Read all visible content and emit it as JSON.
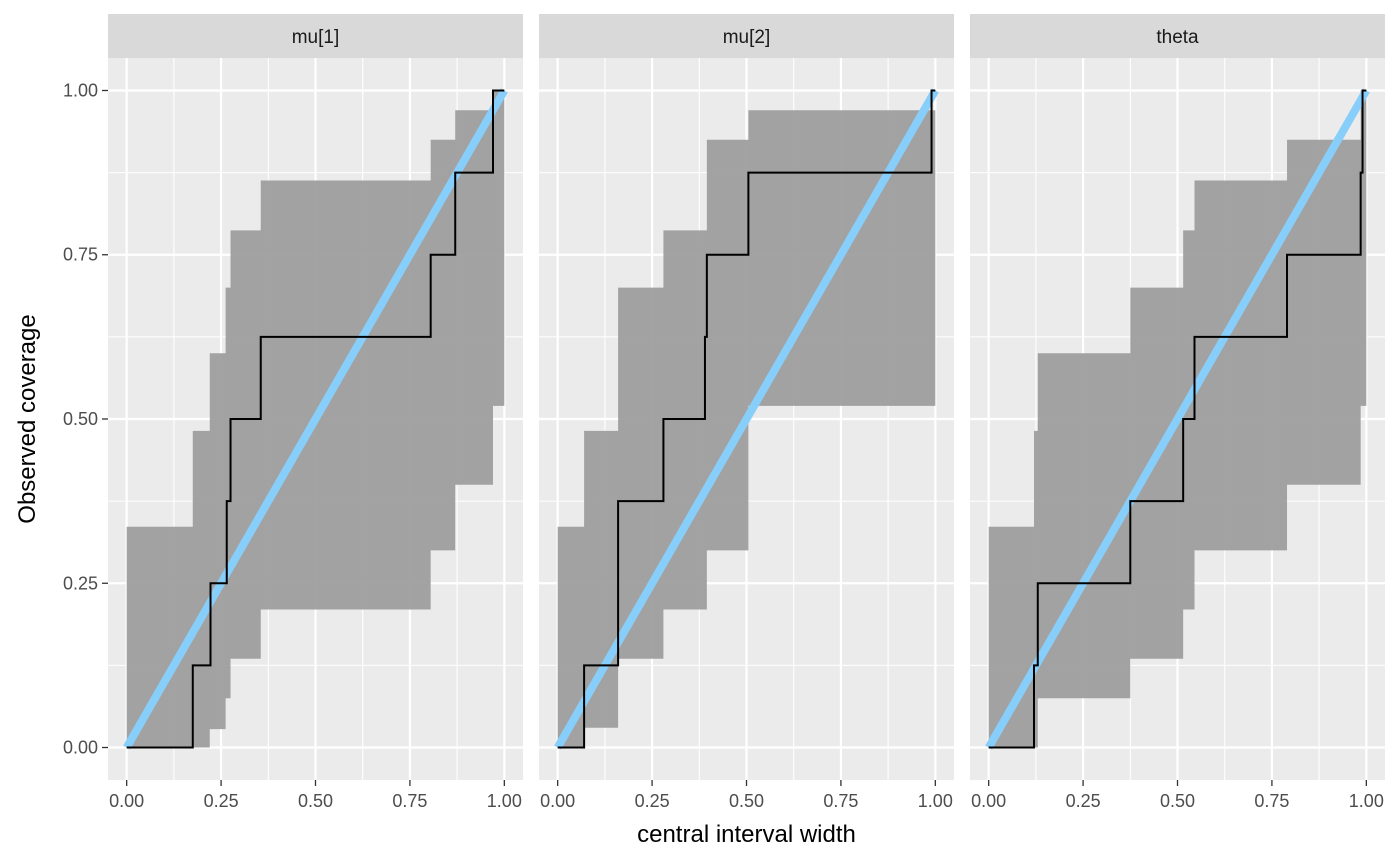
{
  "chart_data": {
    "type": "line",
    "xlabel": "central interval width",
    "ylabel": "Observed coverage",
    "xlim": [
      0,
      1
    ],
    "ylim": [
      0,
      1
    ],
    "x_ticks": [
      "0.00",
      "0.25",
      "0.50",
      "0.75",
      "1.00"
    ],
    "y_ticks": [
      "0.00",
      "0.25",
      "0.50",
      "0.75",
      "1.00"
    ],
    "grid": true,
    "colors": {
      "panel_bg": "#ebebeb",
      "strip_bg": "#d9d9d9",
      "band": "#9e9e9e",
      "reference_line": "#87cefa",
      "step_line": "#000000"
    },
    "panels": [
      {
        "label": "mu[1]",
        "band": [
          {
            "x": 0.0,
            "lo": 0.0,
            "hi": 0.336
          },
          {
            "x": 0.175,
            "lo": 0.0,
            "hi": 0.482
          },
          {
            "x": 0.22,
            "lo": 0.028,
            "hi": 0.6
          },
          {
            "x": 0.262,
            "lo": 0.075,
            "hi": 0.7
          },
          {
            "x": 0.275,
            "lo": 0.135,
            "hi": 0.787
          },
          {
            "x": 0.355,
            "lo": 0.21,
            "hi": 0.863
          },
          {
            "x": 0.805,
            "lo": 0.3,
            "hi": 0.925
          },
          {
            "x": 0.87,
            "lo": 0.4,
            "hi": 0.97
          },
          {
            "x": 0.97,
            "lo": 0.52,
            "hi": 1.0
          },
          {
            "x": 1.0,
            "lo": 0.664,
            "hi": 1.0
          }
        ],
        "steps": [
          {
            "x": 0.0,
            "y": 0.0
          },
          {
            "x": 0.175,
            "y": 0.125
          },
          {
            "x": 0.222,
            "y": 0.25
          },
          {
            "x": 0.265,
            "y": 0.375
          },
          {
            "x": 0.275,
            "y": 0.5
          },
          {
            "x": 0.355,
            "y": 0.625
          },
          {
            "x": 0.805,
            "y": 0.75
          },
          {
            "x": 0.87,
            "y": 0.875
          },
          {
            "x": 0.97,
            "y": 1.0
          },
          {
            "x": 1.0,
            "y": 1.0
          }
        ]
      },
      {
        "label": "mu[2]",
        "band": [
          {
            "x": 0.0,
            "lo": 0.0,
            "hi": 0.336
          },
          {
            "x": 0.07,
            "lo": 0.03,
            "hi": 0.482
          },
          {
            "x": 0.16,
            "lo": 0.135,
            "hi": 0.7
          },
          {
            "x": 0.28,
            "lo": 0.21,
            "hi": 0.787
          },
          {
            "x": 0.395,
            "lo": 0.3,
            "hi": 0.925
          },
          {
            "x": 0.505,
            "lo": 0.52,
            "hi": 0.97
          },
          {
            "x": 1.0,
            "lo": 0.52,
            "hi": 0.97
          }
        ],
        "steps": [
          {
            "x": 0.0,
            "y": 0.0
          },
          {
            "x": 0.07,
            "y": 0.125
          },
          {
            "x": 0.16,
            "y": 0.375
          },
          {
            "x": 0.28,
            "y": 0.5
          },
          {
            "x": 0.39,
            "y": 0.625
          },
          {
            "x": 0.395,
            "y": 0.75
          },
          {
            "x": 0.505,
            "y": 0.875
          },
          {
            "x": 0.99,
            "y": 1.0
          },
          {
            "x": 1.0,
            "y": 1.0
          }
        ]
      },
      {
        "label": "theta",
        "band": [
          {
            "x": 0.0,
            "lo": 0.0,
            "hi": 0.336
          },
          {
            "x": 0.12,
            "lo": 0.0,
            "hi": 0.482
          },
          {
            "x": 0.13,
            "lo": 0.075,
            "hi": 0.6
          },
          {
            "x": 0.375,
            "lo": 0.135,
            "hi": 0.7
          },
          {
            "x": 0.515,
            "lo": 0.21,
            "hi": 0.787
          },
          {
            "x": 0.545,
            "lo": 0.3,
            "hi": 0.863
          },
          {
            "x": 0.79,
            "lo": 0.4,
            "hi": 0.925
          },
          {
            "x": 0.985,
            "lo": 0.52,
            "hi": 1.0
          },
          {
            "x": 1.0,
            "lo": 0.664,
            "hi": 1.0
          }
        ],
        "steps": [
          {
            "x": 0.0,
            "y": 0.0
          },
          {
            "x": 0.12,
            "y": 0.125
          },
          {
            "x": 0.13,
            "y": 0.25
          },
          {
            "x": 0.375,
            "y": 0.375
          },
          {
            "x": 0.515,
            "y": 0.5
          },
          {
            "x": 0.545,
            "y": 0.625
          },
          {
            "x": 0.79,
            "y": 0.75
          },
          {
            "x": 0.985,
            "y": 0.875
          },
          {
            "x": 0.99,
            "y": 1.0
          },
          {
            "x": 1.0,
            "y": 1.0
          }
        ]
      }
    ]
  }
}
